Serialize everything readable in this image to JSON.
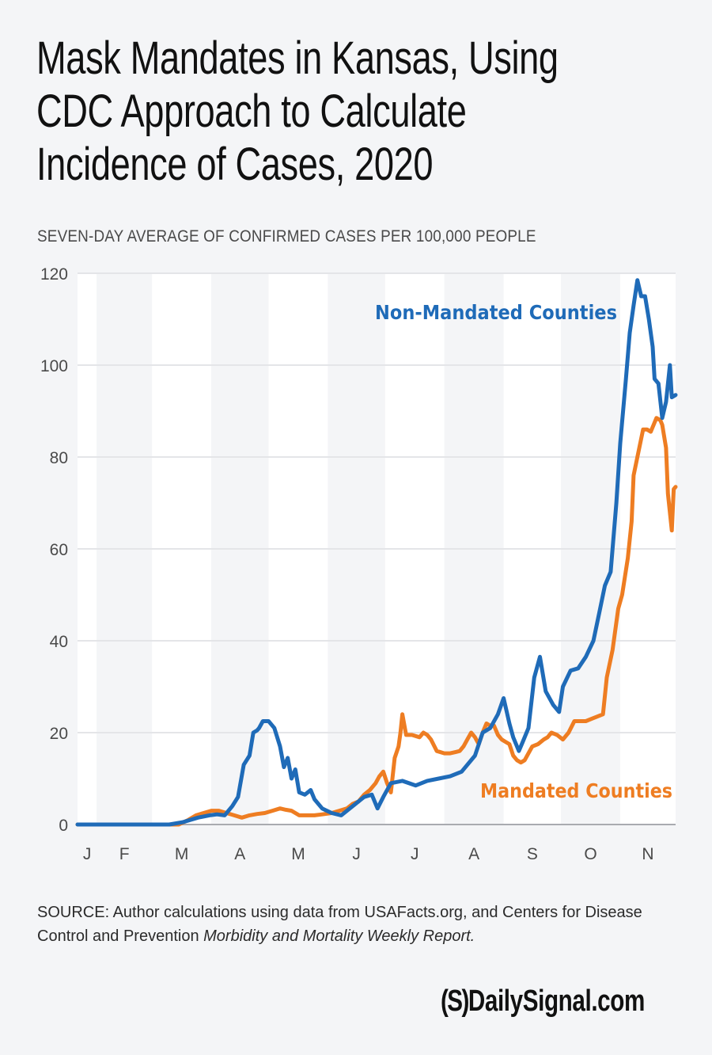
{
  "header": {
    "title_lines": [
      "Mask Mandates in Kansas, Using",
      "CDC Approach to Calculate",
      "Incidence of Cases, 2020"
    ],
    "subtitle": "SEVEN-DAY AVERAGE OF CONFIRMED CASES PER 100,000 PEOPLE"
  },
  "footer": {
    "source_prefix": "SOURCE: Author calculations using data from USAFacts.org, and Centers for Disease Control and Prevention ",
    "source_italic": "Morbidity and Mortality Weekly Report.",
    "logo_mark": "(S)",
    "logo_text": "DailySignal.com"
  },
  "colors": {
    "background": "#f4f5f7",
    "plot_band_light": "#ffffff",
    "plot_band_shade": "#f4f5f7",
    "gridline": "#e4e5e8",
    "axis": "#a9abb0",
    "tick_text": "#4a4a4a",
    "non_mandated": "#1f6bb8",
    "mandated": "#ee7d22"
  },
  "chart_data": {
    "type": "line",
    "title": "Mask Mandates in Kansas, Using CDC Approach to Calculate Incidence of Cases, 2020",
    "ylabel": "SEVEN-DAY AVERAGE OF CONFIRMED CASES PER 100,000 PEOPLE",
    "xlabel": "",
    "x_unit": "day of year 2020",
    "xlim": [
      22,
      335
    ],
    "ylim": [
      0,
      120
    ],
    "yticks": [
      0,
      20,
      40,
      60,
      80,
      100,
      120
    ],
    "grid": true,
    "month_bands": [
      {
        "label": "J",
        "start": 22,
        "end": 32
      },
      {
        "label": "F",
        "start": 32,
        "end": 61
      },
      {
        "label": "M",
        "start": 61,
        "end": 92
      },
      {
        "label": "A",
        "start": 92,
        "end": 122
      },
      {
        "label": "M",
        "start": 122,
        "end": 153
      },
      {
        "label": "J",
        "start": 153,
        "end": 183
      },
      {
        "label": "J",
        "start": 183,
        "end": 214
      },
      {
        "label": "A",
        "start": 214,
        "end": 245
      },
      {
        "label": "S",
        "start": 245,
        "end": 275
      },
      {
        "label": "O",
        "start": 275,
        "end": 306
      },
      {
        "label": "N",
        "start": 306,
        "end": 336
      }
    ],
    "series": [
      {
        "name": "Non-Mandated Counties",
        "color": "#1f6bb8",
        "label_position": "upper-right",
        "points": [
          [
            22,
            0
          ],
          [
            40,
            0
          ],
          [
            60,
            0
          ],
          [
            70,
            0
          ],
          [
            77,
            0.5
          ],
          [
            85,
            1.5
          ],
          [
            91,
            2
          ],
          [
            95,
            2.2
          ],
          [
            99,
            2
          ],
          [
            103,
            4
          ],
          [
            106,
            6
          ],
          [
            109,
            13
          ],
          [
            112,
            15
          ],
          [
            114,
            20
          ],
          [
            116,
            20.5
          ],
          [
            117,
            21
          ],
          [
            119,
            22.5
          ],
          [
            122,
            22.5
          ],
          [
            125,
            21
          ],
          [
            128,
            17
          ],
          [
            130,
            12.5
          ],
          [
            132,
            14.5
          ],
          [
            134,
            10
          ],
          [
            136,
            12
          ],
          [
            138,
            7
          ],
          [
            141,
            6.5
          ],
          [
            144,
            7.5
          ],
          [
            146,
            5.5
          ],
          [
            150,
            3.5
          ],
          [
            155,
            2.5
          ],
          [
            160,
            2
          ],
          [
            166,
            4
          ],
          [
            172,
            6
          ],
          [
            176,
            6.5
          ],
          [
            179,
            3.5
          ],
          [
            182,
            6
          ],
          [
            186,
            9
          ],
          [
            192,
            9.5
          ],
          [
            199,
            8.5
          ],
          [
            205,
            9.5
          ],
          [
            211,
            10
          ],
          [
            217,
            10.5
          ],
          [
            223,
            11.5
          ],
          [
            230,
            15
          ],
          [
            234,
            20
          ],
          [
            238,
            21
          ],
          [
            242,
            24
          ],
          [
            245,
            27.5
          ],
          [
            248,
            22
          ],
          [
            250,
            19
          ],
          [
            253,
            16
          ],
          [
            255,
            18
          ],
          [
            258,
            21
          ],
          [
            261,
            32
          ],
          [
            264,
            36.5
          ],
          [
            267,
            29
          ],
          [
            271,
            26
          ],
          [
            274,
            24.5
          ],
          [
            276,
            30
          ],
          [
            280,
            33.5
          ],
          [
            284,
            34
          ],
          [
            288,
            36.5
          ],
          [
            292,
            40
          ],
          [
            295,
            46
          ],
          [
            298,
            52
          ],
          [
            301,
            55
          ],
          [
            304,
            70
          ],
          [
            306,
            83
          ],
          [
            309,
            97
          ],
          [
            311,
            107
          ],
          [
            313,
            113
          ],
          [
            315,
            118.5
          ],
          [
            317,
            115
          ],
          [
            319,
            115
          ],
          [
            321,
            110
          ],
          [
            323,
            104
          ],
          [
            324,
            97
          ],
          [
            326,
            96
          ],
          [
            328,
            88.5
          ],
          [
            330,
            92
          ],
          [
            332,
            100
          ],
          [
            333,
            93
          ],
          [
            335,
            93.5
          ]
        ]
      },
      {
        "name": "Mandated Counties",
        "color": "#ee7d22",
        "label_position": "lower-right",
        "points": [
          [
            22,
            0
          ],
          [
            50,
            0
          ],
          [
            70,
            0
          ],
          [
            75,
            0
          ],
          [
            80,
            1
          ],
          [
            84,
            2
          ],
          [
            88,
            2.5
          ],
          [
            92,
            3
          ],
          [
            96,
            3
          ],
          [
            100,
            2.5
          ],
          [
            104,
            2
          ],
          [
            108,
            1.5
          ],
          [
            112,
            2
          ],
          [
            116,
            2.3
          ],
          [
            120,
            2.5
          ],
          [
            124,
            3
          ],
          [
            128,
            3.5
          ],
          [
            131,
            3.2
          ],
          [
            134,
            3
          ],
          [
            138,
            2
          ],
          [
            142,
            2
          ],
          [
            146,
            2
          ],
          [
            150,
            2.2
          ],
          [
            155,
            2.5
          ],
          [
            159,
            3
          ],
          [
            163,
            3.5
          ],
          [
            166,
            4.5
          ],
          [
            169,
            5
          ],
          [
            172,
            6.5
          ],
          [
            175,
            7.5
          ],
          [
            178,
            9
          ],
          [
            180,
            10.5
          ],
          [
            182,
            11.5
          ],
          [
            184,
            9
          ],
          [
            186,
            7
          ],
          [
            188,
            14.5
          ],
          [
            190,
            17
          ],
          [
            191,
            20
          ],
          [
            192,
            24
          ],
          [
            194,
            19.5
          ],
          [
            197,
            19.5
          ],
          [
            201,
            19
          ],
          [
            203,
            20
          ],
          [
            205,
            19.5
          ],
          [
            207,
            18.5
          ],
          [
            210,
            16
          ],
          [
            214,
            15.5
          ],
          [
            217,
            15.5
          ],
          [
            220,
            15.8
          ],
          [
            222,
            16
          ],
          [
            224,
            17
          ],
          [
            226,
            18.5
          ],
          [
            228,
            20
          ],
          [
            230,
            19
          ],
          [
            232,
            17.5
          ],
          [
            234,
            20
          ],
          [
            236,
            22
          ],
          [
            238,
            21.5
          ],
          [
            240,
            21.5
          ],
          [
            242,
            19.5
          ],
          [
            244,
            18.5
          ],
          [
            246,
            18
          ],
          [
            248,
            17.5
          ],
          [
            250,
            15
          ],
          [
            252,
            14
          ],
          [
            254,
            13.5
          ],
          [
            256,
            14
          ],
          [
            258,
            15.5
          ],
          [
            260,
            17
          ],
          [
            263,
            17.5
          ],
          [
            266,
            18.5
          ],
          [
            268,
            19
          ],
          [
            270,
            20
          ],
          [
            273,
            19.5
          ],
          [
            276,
            18.5
          ],
          [
            279,
            20
          ],
          [
            282,
            22.5
          ],
          [
            285,
            22.5
          ],
          [
            288,
            22.5
          ],
          [
            291,
            23
          ],
          [
            294,
            23.5
          ],
          [
            297,
            24
          ],
          [
            299,
            32
          ],
          [
            302,
            38
          ],
          [
            305,
            47
          ],
          [
            307,
            50
          ],
          [
            310,
            58
          ],
          [
            312,
            66
          ],
          [
            313,
            76
          ],
          [
            315,
            80
          ],
          [
            318,
            86
          ],
          [
            320,
            86
          ],
          [
            322,
            85.5
          ],
          [
            325,
            88.5
          ],
          [
            327,
            88
          ],
          [
            328,
            87
          ],
          [
            330,
            82
          ],
          [
            331,
            72
          ],
          [
            333,
            64
          ],
          [
            334,
            73
          ],
          [
            335,
            73.5
          ]
        ]
      }
    ]
  }
}
